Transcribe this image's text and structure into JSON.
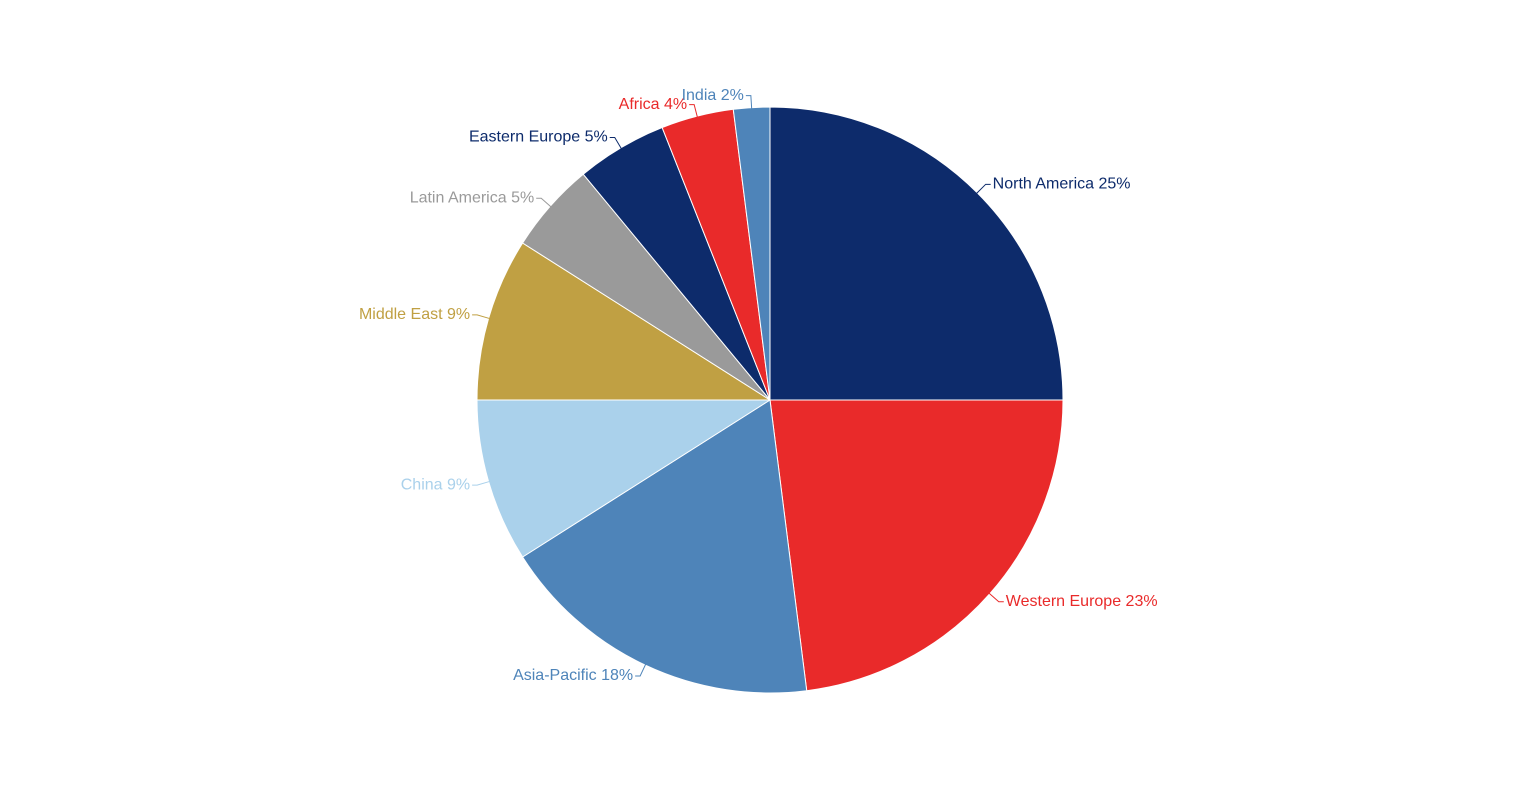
{
  "chart_data": {
    "type": "pie",
    "title": "",
    "start_angle_deg": 0,
    "direction": "clockwise",
    "legend": "none",
    "label_format": "{name} {pct}%",
    "slices": [
      {
        "name": "North America",
        "value": 25,
        "color": "#0d2b6b"
      },
      {
        "name": "Western Europe",
        "value": 23,
        "color": "#e92a2a"
      },
      {
        "name": "Asia-Pacific",
        "value": 18,
        "color": "#4e84b9"
      },
      {
        "name": "China",
        "value": 9,
        "color": "#aad1eb"
      },
      {
        "name": "Middle East",
        "value": 9,
        "color": "#c0a043"
      },
      {
        "name": "Latin America",
        "value": 5,
        "color": "#9a9a9a"
      },
      {
        "name": "Eastern Europe",
        "value": 5,
        "color": "#0d2b6b"
      },
      {
        "name": "Africa",
        "value": 4,
        "color": "#e92a2a"
      },
      {
        "name": "India",
        "value": 2,
        "color": "#4e84b9"
      }
    ]
  }
}
